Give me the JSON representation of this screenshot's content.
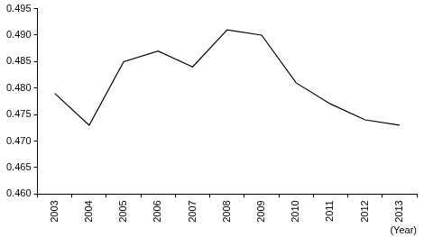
{
  "chart_data": {
    "type": "line",
    "x_label": "(Year)",
    "categories": [
      "2003",
      "2004",
      "2005",
      "2006",
      "2007",
      "2008",
      "2009",
      "2010",
      "2011",
      "2012",
      "2013"
    ],
    "values": [
      0.479,
      0.473,
      0.485,
      0.487,
      0.484,
      0.491,
      0.49,
      0.481,
      0.477,
      0.474,
      0.473
    ],
    "color": "#000000",
    "ylim": [
      0.46,
      0.495
    ],
    "yticks": [
      {
        "value": 0.46,
        "label": "0.460"
      },
      0.465,
      {
        "value": 0.47,
        "label": "0.470"
      },
      0.475,
      {
        "value": 0.48,
        "label": "0.480"
      },
      0.485,
      {
        "value": 0.49,
        "label": "0.490"
      },
      0.495
    ],
    "grid": false,
    "marker": "none"
  }
}
